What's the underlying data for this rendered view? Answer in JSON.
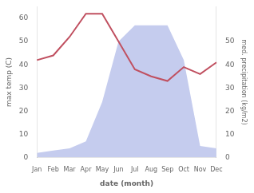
{
  "chart_data": {
    "type": "line",
    "xlabel": "date (month)",
    "ylabel": "max temp (C)",
    "y2label": "med. precipitation (kg/m2)",
    "categories": [
      "Jan",
      "Feb",
      "Mar",
      "Apr",
      "May",
      "Jun",
      "Jul",
      "Aug",
      "Sep",
      "Oct",
      "Nov",
      "Dec"
    ],
    "series": [
      {
        "type": "area",
        "axis": "y2",
        "color": "#c5ccee",
        "values": [
          2,
          3,
          4,
          7,
          24,
          50,
          57,
          57,
          57,
          42,
          5,
          4
        ]
      },
      {
        "type": "line",
        "color": "#c05060",
        "values": [
          42,
          44,
          52,
          62,
          62,
          50,
          38,
          35,
          33,
          39,
          36,
          41
        ]
      }
    ],
    "ylim": [
      0,
      65
    ],
    "yticks": [
      0,
      10,
      20,
      30,
      40,
      50,
      60
    ],
    "y2lim": [
      0,
      65
    ],
    "y2ticks": [
      0,
      10,
      20,
      30,
      40,
      50
    ],
    "grid": false
  }
}
